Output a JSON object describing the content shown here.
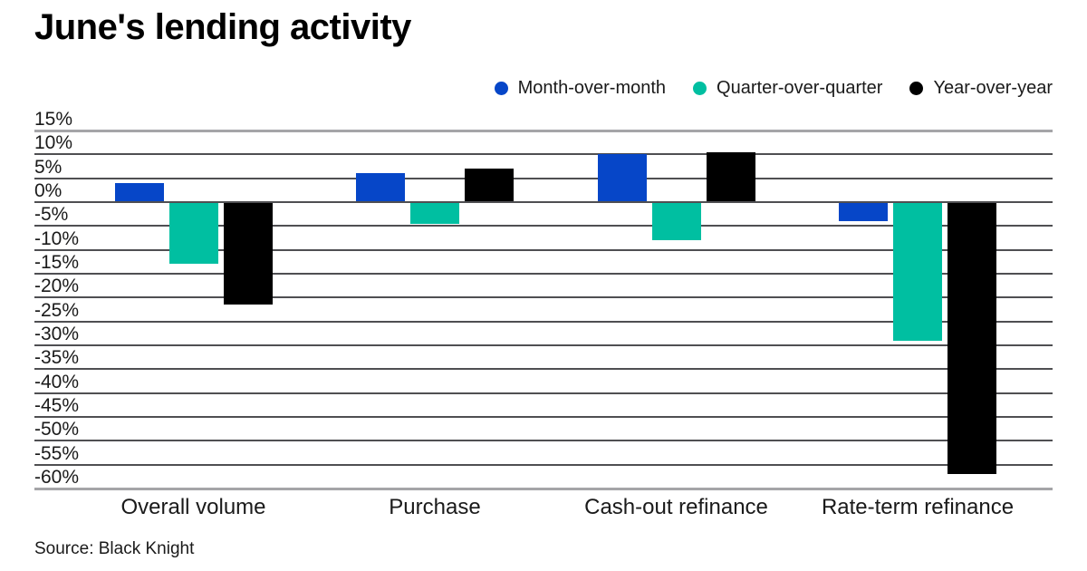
{
  "title": "June's lending activity",
  "source": "Source: Black Knight",
  "legend": [
    {
      "name": "Month-over-month",
      "color": "#0646C8"
    },
    {
      "name": "Quarter-over-quarter",
      "color": "#00BFA1"
    },
    {
      "name": "Year-over-year",
      "color": "#000000"
    }
  ],
  "chart_data": {
    "type": "bar",
    "title": "June's lending activity",
    "categories": [
      "Overall volume",
      "Purchase",
      "Cash-out refinance",
      "Rate-term refinance"
    ],
    "series": [
      {
        "name": "Month-over-month",
        "color": "#0646C8",
        "values": [
          4,
          6,
          10,
          -4
        ]
      },
      {
        "name": "Quarter-over-quarter",
        "color": "#00BFA1",
        "values": [
          -13,
          -4.5,
          -8,
          -29
        ]
      },
      {
        "name": "Year-over-year",
        "color": "#000000",
        "values": [
          -21.5,
          7,
          10.5,
          -57
        ]
      }
    ],
    "ylabel": "",
    "xlabel": "",
    "ylim": [
      -60,
      15
    ],
    "ytick_step": 5,
    "ytick_suffix": "%",
    "grid": true,
    "legend_position": "top-right",
    "source": "Source: Black Knight"
  }
}
